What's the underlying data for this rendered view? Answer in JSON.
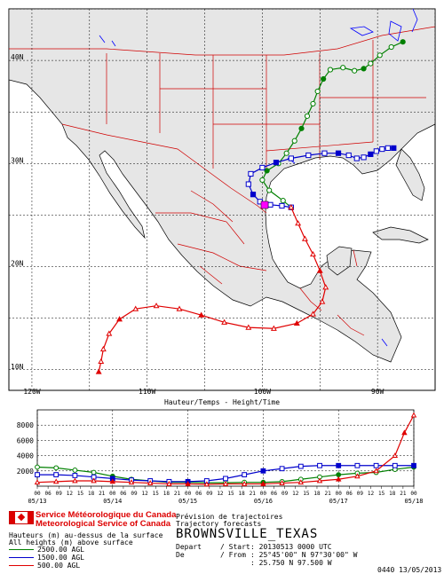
{
  "map": {
    "lon_labels": [
      "120W",
      "110W",
      "100W",
      "90W"
    ],
    "lat_labels": [
      "40N",
      "30N",
      "20N",
      "10N"
    ],
    "lon_range": [
      -122,
      -85
    ],
    "lat_range": [
      8,
      45
    ]
  },
  "chart_data": {
    "type": "line",
    "title": "Hauteur/Temps - Height/Time",
    "x_labels": [
      "00",
      "06",
      "09",
      "12",
      "15",
      "18",
      "21",
      "00",
      "06",
      "09",
      "12",
      "15",
      "18",
      "21",
      "00",
      "06",
      "09",
      "12",
      "15",
      "18",
      "21",
      "00",
      "06",
      "09",
      "12",
      "15",
      "18",
      "21",
      "00",
      "06",
      "09",
      "12",
      "15",
      "18",
      "21",
      "00"
    ],
    "date_labels": [
      "05/13",
      "05/14",
      "05/15",
      "05/16",
      "05/17",
      "05/18"
    ],
    "yticks": [
      2000,
      4000,
      6000,
      8000
    ],
    "ylim": [
      0,
      10000
    ],
    "xlim": [
      0,
      120
    ],
    "series": [
      {
        "name": "2500.00 AGL",
        "color": "#008000",
        "marker": "circle",
        "hours": [
          0,
          6,
          12,
          18,
          24,
          30,
          36,
          42,
          48,
          54,
          60,
          66,
          72,
          78,
          84,
          90,
          96,
          102,
          108,
          114,
          120
        ],
        "heights": [
          2500,
          2400,
          2100,
          1800,
          1300,
          900,
          700,
          500,
          500,
          450,
          450,
          500,
          500,
          600,
          900,
          1200,
          1500,
          1700,
          1800,
          2200,
          2500
        ]
      },
      {
        "name": "1500.00 AGL",
        "color": "#0000cc",
        "marker": "square",
        "hours": [
          0,
          6,
          12,
          18,
          24,
          30,
          36,
          42,
          48,
          54,
          60,
          66,
          72,
          78,
          84,
          90,
          96,
          102,
          108,
          114,
          120
        ],
        "heights": [
          1500,
          1500,
          1400,
          1200,
          1000,
          800,
          700,
          600,
          600,
          700,
          1000,
          1500,
          2000,
          2300,
          2600,
          2700,
          2700,
          2700,
          2700,
          2700,
          2700
        ]
      },
      {
        "name": "500.00 AGL",
        "color": "#e00000",
        "marker": "triangle",
        "hours": [
          0,
          6,
          12,
          18,
          24,
          30,
          36,
          42,
          48,
          54,
          60,
          66,
          72,
          78,
          84,
          90,
          96,
          102,
          108,
          114,
          117,
          120
        ],
        "heights": [
          500,
          600,
          700,
          700,
          600,
          500,
          400,
          300,
          300,
          250,
          300,
          300,
          300,
          400,
          500,
          700,
          900,
          1300,
          2000,
          4000,
          7000,
          9300
        ]
      }
    ],
    "tracks": [
      {
        "name": "2500.00 AGL",
        "color": "#008000",
        "marker": "circle",
        "points": [
          [
            -97.5,
            25.75
          ],
          [
            -98.2,
            26.4
          ],
          [
            -99.4,
            27.4
          ],
          [
            -100.0,
            28.4
          ],
          [
            -99.6,
            29.3
          ],
          [
            -98.6,
            30.0
          ],
          [
            -97.9,
            31.0
          ],
          [
            -97.2,
            32.2
          ],
          [
            -96.6,
            33.4
          ],
          [
            -96.1,
            34.6
          ],
          [
            -95.6,
            35.8
          ],
          [
            -95.2,
            37.0
          ],
          [
            -94.7,
            38.2
          ],
          [
            -94.1,
            39.1
          ],
          [
            -93.0,
            39.3
          ],
          [
            -92.0,
            39.0
          ],
          [
            -91.2,
            39.2
          ],
          [
            -90.6,
            39.7
          ],
          [
            -89.8,
            40.5
          ],
          [
            -88.8,
            41.3
          ],
          [
            -87.8,
            41.8
          ]
        ]
      },
      {
        "name": "1500.00 AGL",
        "color": "#0000cc",
        "marker": "square",
        "points": [
          [
            -97.5,
            25.75
          ],
          [
            -98.3,
            25.9
          ],
          [
            -99.3,
            26.0
          ],
          [
            -100.2,
            26.3
          ],
          [
            -100.8,
            27.0
          ],
          [
            -101.2,
            28.0
          ],
          [
            -101.0,
            29.0
          ],
          [
            -100.0,
            29.6
          ],
          [
            -98.8,
            30.1
          ],
          [
            -97.5,
            30.5
          ],
          [
            -96.0,
            30.8
          ],
          [
            -94.6,
            31.0
          ],
          [
            -93.4,
            31.0
          ],
          [
            -92.5,
            30.8
          ],
          [
            -91.8,
            30.5
          ],
          [
            -91.2,
            30.6
          ],
          [
            -90.6,
            30.9
          ],
          [
            -90.1,
            31.2
          ],
          [
            -89.6,
            31.4
          ],
          [
            -89.1,
            31.5
          ],
          [
            -88.6,
            31.5
          ]
        ]
      },
      {
        "name": "500.00 AGL",
        "color": "#e00000",
        "marker": "triangle",
        "points": [
          [
            -97.5,
            25.75
          ],
          [
            -96.9,
            24.2
          ],
          [
            -96.3,
            22.7
          ],
          [
            -95.6,
            21.2
          ],
          [
            -95.0,
            19.6
          ],
          [
            -94.5,
            18.0
          ],
          [
            -94.8,
            16.6
          ],
          [
            -95.6,
            15.4
          ],
          [
            -97.0,
            14.5
          ],
          [
            -99.0,
            14.0
          ],
          [
            -101.2,
            14.1
          ],
          [
            -103.3,
            14.6
          ],
          [
            -105.3,
            15.3
          ],
          [
            -107.2,
            15.9
          ],
          [
            -109.2,
            16.2
          ],
          [
            -111.0,
            15.9
          ],
          [
            -112.4,
            14.9
          ],
          [
            -113.3,
            13.5
          ],
          [
            -113.8,
            12.0
          ],
          [
            -114.0,
            10.8
          ],
          [
            -114.2,
            9.8
          ]
        ]
      }
    ]
  },
  "footer": {
    "agency_fr": "Service Météorologique du Canada",
    "agency_en": "Meteorological Service of Canada",
    "height_note_fr": "Hauteurs (m) au-dessus de la surface",
    "height_note_en": "All heights (m) above surface",
    "legend": [
      "2500.00 AGL",
      "1500.00 AGL",
      "500.00 AGL"
    ],
    "product_fr": "Prévision de trajectoires",
    "product_en": "Trajectory forecasts",
    "station": "BROWNSVILLE_TEXAS",
    "depart_label": "Depart",
    "start_label": "/ Start",
    "start_value": ": 20130513 0000 UTC",
    "de_label": "De",
    "from_label": "/ From",
    "from_value": ": 25°45'00\" N 97°30'00\" W",
    "from_decimal": ": 25.750 N 97.500 W",
    "stamp": "0440 13/05/2013"
  }
}
